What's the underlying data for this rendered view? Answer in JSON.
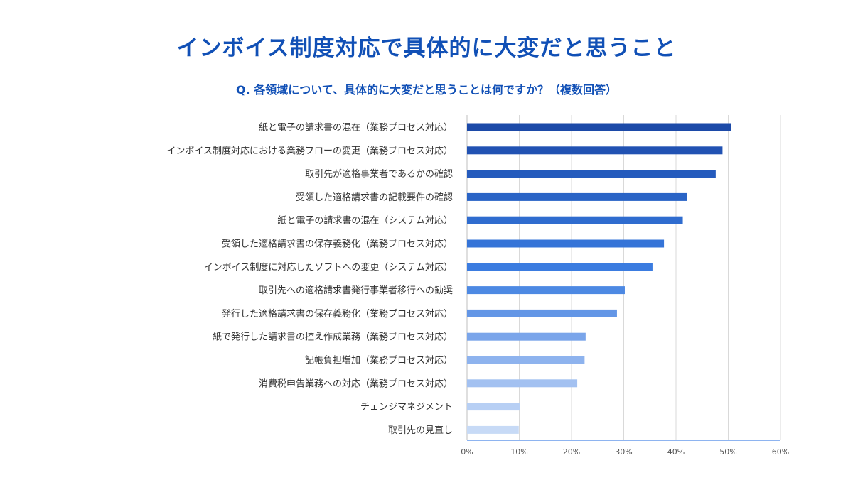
{
  "title": "インボイス制度対応で具体的に大変だと思うこと",
  "subtitle": "Q. 各領域について、具体的に大変だと思うことは何ですか？（複数回答）",
  "chart_data": {
    "type": "bar",
    "orientation": "horizontal",
    "categories": [
      "紙と電子の請求書の混在（業務プロセス対応）",
      "インボイス制度対応における業務フローの変更（業務プロセス対応）",
      "取引先が適格事業者であるかの確認",
      "受領した適格請求書の記載要件の確認",
      "紙と電子の請求書の混在（システム対応）",
      "受領した適格請求書の保存義務化（業務プロセス対応）",
      "インボイス制度に対応したソフトへの変更（システム対応）",
      "取引先への適格請求書発行事業者移行への勧奨",
      "発行した適格請求書の保存義務化（業務プロセス対応）",
      "紙で発行した請求書の控え作成業務（業務プロセス対応）",
      "記帳負担増加（業務プロセス対応）",
      "消費税申告業務への対応（業務プロセス対応）",
      "チェンジマネジメント",
      "取引先の見直し"
    ],
    "values": [
      50.5,
      48.9,
      47.6,
      42.1,
      41.3,
      37.7,
      35.5,
      30.2,
      28.7,
      22.7,
      22.5,
      21.1,
      10.1,
      9.9
    ],
    "colors": [
      "#1c4aa8",
      "#2152b3",
      "#255bbd",
      "#2a64c6",
      "#2f6ccf",
      "#3574d8",
      "#3b7ce0",
      "#4d89e3",
      "#6396e6",
      "#7aa5ea",
      "#8eb3ee",
      "#a3c1f1",
      "#b7cff4",
      "#c7daf6"
    ],
    "x_ticks": [
      "0%",
      "10%",
      "20%",
      "30%",
      "40%",
      "50%",
      "60%"
    ],
    "xlim": [
      0,
      60
    ],
    "grid": true,
    "legend": "none"
  }
}
